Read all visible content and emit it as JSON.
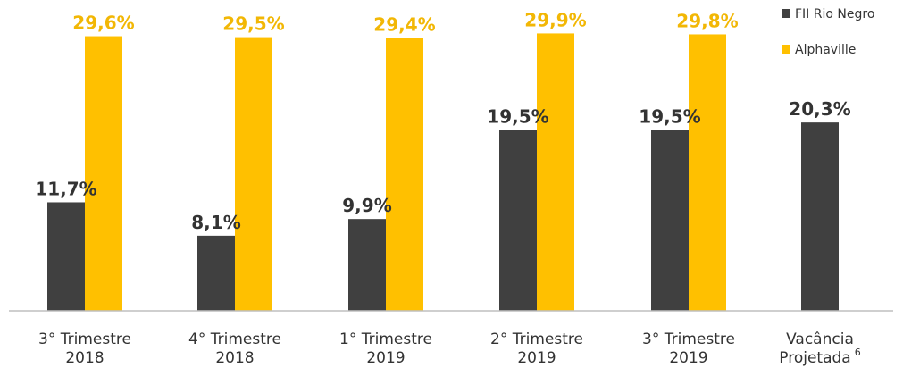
{
  "chart_data": {
    "type": "bar",
    "categories": [
      [
        "3° Trimestre",
        "2018"
      ],
      [
        "4° Trimestre",
        "2018"
      ],
      [
        "1° Trimestre",
        "2019"
      ],
      [
        "2° Trimestre",
        "2019"
      ],
      [
        "3° Trimestre",
        "2019"
      ],
      [
        "Vacância",
        "Projetada"
      ]
    ],
    "category_footnote": {
      "index": 5,
      "text": "6"
    },
    "series": [
      {
        "name": "FII Rio Negro",
        "color": "#404040",
        "values": [
          11.7,
          8.1,
          9.9,
          19.5,
          19.5,
          20.3
        ],
        "labels": [
          "11,7%",
          "8,1%",
          "9,9%",
          "19,5%",
          "19,5%",
          "20,3%"
        ]
      },
      {
        "name": "Alphaville",
        "color": "#FFC000",
        "label_color": "#F2B705",
        "values": [
          29.6,
          29.5,
          29.4,
          29.9,
          29.8,
          null
        ],
        "labels": [
          "29,6%",
          "29,5%",
          "29,4%",
          "29,9%",
          "29,8%",
          ""
        ]
      }
    ],
    "ylim": [
      0,
      31
    ],
    "grid": false,
    "legend_position": "top-right",
    "title": "",
    "xlabel": "",
    "ylabel": ""
  }
}
